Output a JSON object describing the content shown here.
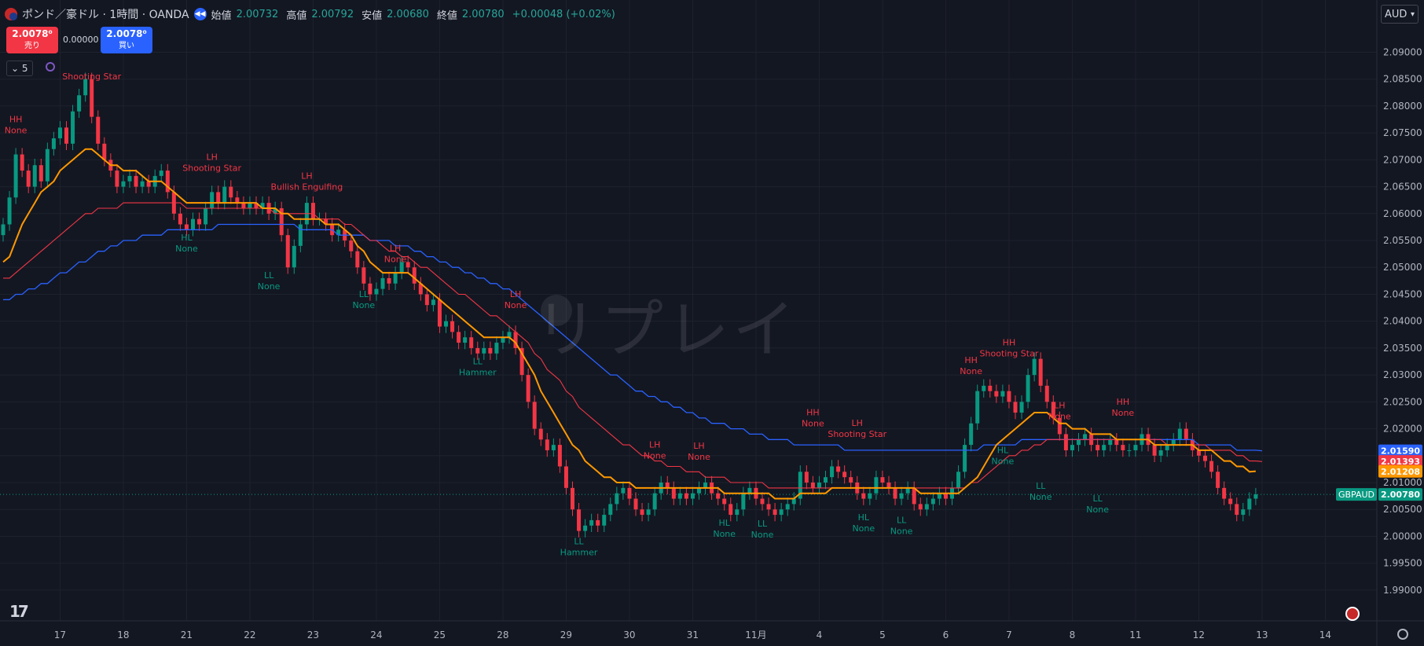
{
  "header": {
    "title": "ポンド／豪ドル · 1時間 · OANDA",
    "open_label": "始値",
    "open": "2.00732",
    "high_label": "高値",
    "high": "2.00792",
    "low_label": "安値",
    "low": "2.00680",
    "close_label": "終値",
    "close": "2.00780",
    "change": "+0.00048 (+0.02%)"
  },
  "trade": {
    "sell_price": "2.0078⁰",
    "sell_label": "売り",
    "spread": "0.00000",
    "buy_price": "2.0078⁰",
    "buy_label": "買い"
  },
  "indicator_count": "5",
  "currency": "AUD",
  "watermark": "リプレイ",
  "colors": {
    "up": "#089981",
    "down": "#f23645",
    "ema_fast": "#ff9800",
    "ema_mid": "#f23645",
    "ema_slow": "#2962ff",
    "label_high": "#f23645",
    "label_low": "#089981"
  },
  "chart_data": {
    "type": "line",
    "symbol": "GBPAUD",
    "ylim": [
      1.9875,
      2.0965
    ],
    "y_ticks": [
      "2.09000",
      "2.08500",
      "2.08000",
      "2.07500",
      "2.07000",
      "2.06500",
      "2.06000",
      "2.05500",
      "2.05000",
      "2.04500",
      "2.04000",
      "2.03500",
      "2.03000",
      "2.02500",
      "2.02000",
      "2.01500",
      "2.01000",
      "2.00500",
      "2.00000",
      "1.99500",
      "1.99000"
    ],
    "y_tick_values": [
      2.09,
      2.085,
      2.08,
      2.075,
      2.07,
      2.065,
      2.06,
      2.055,
      2.05,
      2.045,
      2.04,
      2.035,
      2.03,
      2.025,
      2.02,
      2.015,
      2.01,
      2.005,
      2.0,
      1.995,
      1.99
    ],
    "x_ticks": [
      "17",
      "18",
      "21",
      "22",
      "23",
      "24",
      "25",
      "28",
      "29",
      "30",
      "31",
      "11月",
      "4",
      "5",
      "6",
      "7",
      "8",
      "11",
      "12",
      "13",
      "14"
    ],
    "x_tick_index": [
      9,
      19,
      29,
      39,
      49,
      59,
      69,
      79,
      89,
      99,
      109,
      119,
      129,
      139,
      149,
      159,
      169,
      179,
      189,
      199,
      209
    ],
    "price_line": 2.0078,
    "series": [
      {
        "id": "close",
        "values": [
          2.058,
          2.063,
          2.071,
          2.068,
          2.065,
          2.069,
          2.066,
          2.072,
          2.074,
          2.076,
          2.073,
          2.079,
          2.082,
          2.085,
          2.078,
          2.073,
          2.07,
          2.068,
          2.065,
          2.066,
          2.067,
          2.065,
          2.066,
          2.065,
          2.067,
          2.068,
          2.064,
          2.06,
          2.058,
          2.057,
          2.059,
          2.058,
          2.061,
          2.064,
          2.062,
          2.065,
          2.063,
          2.062,
          2.061,
          2.062,
          2.061,
          2.062,
          2.06,
          2.061,
          2.056,
          2.05,
          2.054,
          2.058,
          2.062,
          2.059,
          2.059,
          2.058,
          2.056,
          2.057,
          2.055,
          2.053,
          2.05,
          2.047,
          2.045,
          2.046,
          2.048,
          2.047,
          2.049,
          2.051,
          2.05,
          2.047,
          2.045,
          2.043,
          2.044,
          2.039,
          2.04,
          2.038,
          2.036,
          2.037,
          2.035,
          2.034,
          2.035,
          2.034,
          2.036,
          2.037,
          2.038,
          2.035,
          2.03,
          2.025,
          2.02,
          2.018,
          2.016,
          2.017,
          2.013,
          2.009,
          2.005,
          2.001,
          2.002,
          2.003,
          2.002,
          2.004,
          2.006,
          2.008,
          2.009,
          2.007,
          2.005,
          2.004,
          2.005,
          2.008,
          2.01,
          2.009,
          2.007,
          2.008,
          2.007,
          2.008,
          2.009,
          2.01,
          2.008,
          2.007,
          2.006,
          2.004,
          2.005,
          2.008,
          2.009,
          2.007,
          2.006,
          2.005,
          2.004,
          2.005,
          2.006,
          2.007,
          2.012,
          2.01,
          2.009,
          2.01,
          2.011,
          2.013,
          2.012,
          2.011,
          2.01,
          2.008,
          2.007,
          2.008,
          2.011,
          2.01,
          2.009,
          2.007,
          2.008,
          2.009,
          2.006,
          2.005,
          2.006,
          2.007,
          2.008,
          2.007,
          2.009,
          2.012,
          2.017,
          2.021,
          2.027,
          2.028,
          2.027,
          2.026,
          2.027,
          2.025,
          2.023,
          2.025,
          2.03,
          2.033,
          2.028,
          2.025,
          2.022,
          2.019,
          2.016,
          2.017,
          2.018,
          2.019,
          2.017,
          2.016,
          2.017,
          2.018,
          2.017,
          2.016,
          2.016,
          2.017,
          2.019,
          2.017,
          2.015,
          2.016,
          2.017,
          2.018,
          2.02,
          2.018,
          2.016,
          2.015,
          2.014,
          2.012,
          2.009,
          2.007,
          2.006,
          2.004,
          2.005,
          2.007,
          2.0078
        ]
      },
      {
        "id": "ema_fast",
        "values": [
          2.051,
          2.052,
          2.055,
          2.058,
          2.06,
          2.062,
          2.064,
          2.065,
          2.066,
          2.068,
          2.069,
          2.07,
          2.071,
          2.072,
          2.072,
          2.071,
          2.07,
          2.069,
          2.069,
          2.068,
          2.068,
          2.068,
          2.067,
          2.066,
          2.066,
          2.066,
          2.065,
          2.064,
          2.063,
          2.062,
          2.062,
          2.062,
          2.062,
          2.062,
          2.062,
          2.062,
          2.062,
          2.062,
          2.062,
          2.062,
          2.062,
          2.061,
          2.061,
          2.061,
          2.06,
          2.06,
          2.059,
          2.059,
          2.059,
          2.059,
          2.059,
          2.058,
          2.058,
          2.058,
          2.057,
          2.056,
          2.054,
          2.053,
          2.051,
          2.05,
          2.049,
          2.049,
          2.049,
          2.049,
          2.049,
          2.048,
          2.047,
          2.046,
          2.045,
          2.044,
          2.043,
          2.042,
          2.041,
          2.04,
          2.039,
          2.038,
          2.037,
          2.037,
          2.037,
          2.037,
          2.037,
          2.036,
          2.034,
          2.032,
          2.03,
          2.027,
          2.025,
          2.023,
          2.021,
          2.019,
          2.017,
          2.016,
          2.014,
          2.013,
          2.012,
          2.011,
          2.011,
          2.01,
          2.01,
          2.01,
          2.009,
          2.009,
          2.009,
          2.009,
          2.009,
          2.009,
          2.009,
          2.009,
          2.009,
          2.009,
          2.009,
          2.009,
          2.009,
          2.009,
          2.008,
          2.008,
          2.008,
          2.008,
          2.008,
          2.008,
          2.008,
          2.008,
          2.007,
          2.007,
          2.007,
          2.007,
          2.008,
          2.008,
          2.008,
          2.008,
          2.008,
          2.009,
          2.009,
          2.009,
          2.009,
          2.009,
          2.009,
          2.009,
          2.009,
          2.009,
          2.009,
          2.009,
          2.009,
          2.009,
          2.009,
          2.008,
          2.008,
          2.008,
          2.008,
          2.008,
          2.008,
          2.008,
          2.009,
          2.01,
          2.011,
          2.013,
          2.015,
          2.017,
          2.018,
          2.019,
          2.02,
          2.021,
          2.022,
          2.023,
          2.023,
          2.023,
          2.022,
          2.021,
          2.021,
          2.02,
          2.02,
          2.02,
          2.019,
          2.019,
          2.019,
          2.019,
          2.018,
          2.018,
          2.018,
          2.018,
          2.018,
          2.018,
          2.017,
          2.017,
          2.017,
          2.017,
          2.017,
          2.017,
          2.017,
          2.016,
          2.016,
          2.016,
          2.015,
          2.014,
          2.014,
          2.013,
          2.013,
          2.012,
          2.0121
        ]
      },
      {
        "id": "ema_mid",
        "values": [
          2.048,
          2.048,
          2.049,
          2.05,
          2.051,
          2.052,
          2.053,
          2.054,
          2.055,
          2.056,
          2.057,
          2.058,
          2.059,
          2.06,
          2.06,
          2.061,
          2.061,
          2.061,
          2.061,
          2.062,
          2.062,
          2.062,
          2.062,
          2.062,
          2.062,
          2.062,
          2.062,
          2.062,
          2.062,
          2.061,
          2.061,
          2.061,
          2.061,
          2.061,
          2.061,
          2.061,
          2.061,
          2.061,
          2.061,
          2.061,
          2.061,
          2.061,
          2.061,
          2.06,
          2.06,
          2.06,
          2.06,
          2.06,
          2.06,
          2.06,
          2.059,
          2.059,
          2.059,
          2.059,
          2.058,
          2.058,
          2.057,
          2.056,
          2.055,
          2.055,
          2.054,
          2.053,
          2.053,
          2.052,
          2.052,
          2.051,
          2.05,
          2.05,
          2.049,
          2.048,
          2.047,
          2.046,
          2.045,
          2.045,
          2.044,
          2.043,
          2.042,
          2.041,
          2.041,
          2.04,
          2.039,
          2.038,
          2.037,
          2.036,
          2.034,
          2.033,
          2.031,
          2.03,
          2.029,
          2.027,
          2.026,
          2.024,
          2.023,
          2.022,
          2.021,
          2.02,
          2.019,
          2.018,
          2.017,
          2.017,
          2.016,
          2.015,
          2.015,
          2.014,
          2.014,
          2.013,
          2.013,
          2.013,
          2.012,
          2.012,
          2.012,
          2.011,
          2.011,
          2.011,
          2.011,
          2.01,
          2.01,
          2.01,
          2.01,
          2.01,
          2.01,
          2.009,
          2.009,
          2.009,
          2.009,
          2.009,
          2.009,
          2.009,
          2.009,
          2.009,
          2.009,
          2.009,
          2.009,
          2.009,
          2.009,
          2.009,
          2.009,
          2.009,
          2.009,
          2.009,
          2.009,
          2.009,
          2.009,
          2.009,
          2.009,
          2.009,
          2.009,
          2.009,
          2.009,
          2.009,
          2.009,
          2.009,
          2.009,
          2.01,
          2.01,
          2.011,
          2.012,
          2.013,
          2.014,
          2.015,
          2.015,
          2.016,
          2.016,
          2.017,
          2.017,
          2.018,
          2.018,
          2.018,
          2.018,
          2.018,
          2.018,
          2.018,
          2.018,
          2.018,
          2.018,
          2.018,
          2.018,
          2.018,
          2.018,
          2.018,
          2.018,
          2.018,
          2.018,
          2.018,
          2.017,
          2.017,
          2.017,
          2.017,
          2.017,
          2.017,
          2.017,
          2.016,
          2.016,
          2.016,
          2.016,
          2.015,
          2.015,
          2.014,
          2.014,
          2.0139
        ]
      },
      {
        "id": "ema_slow",
        "values": [
          2.044,
          2.044,
          2.045,
          2.045,
          2.046,
          2.046,
          2.047,
          2.047,
          2.048,
          2.049,
          2.049,
          2.05,
          2.051,
          2.051,
          2.052,
          2.053,
          2.053,
          2.054,
          2.054,
          2.055,
          2.055,
          2.055,
          2.056,
          2.056,
          2.056,
          2.056,
          2.057,
          2.057,
          2.057,
          2.057,
          2.057,
          2.057,
          2.057,
          2.057,
          2.058,
          2.058,
          2.058,
          2.058,
          2.058,
          2.058,
          2.058,
          2.058,
          2.058,
          2.058,
          2.058,
          2.058,
          2.058,
          2.057,
          2.057,
          2.057,
          2.057,
          2.057,
          2.057,
          2.056,
          2.056,
          2.056,
          2.056,
          2.056,
          2.055,
          2.055,
          2.055,
          2.055,
          2.054,
          2.054,
          2.054,
          2.053,
          2.053,
          2.052,
          2.052,
          2.051,
          2.051,
          2.05,
          2.05,
          2.049,
          2.049,
          2.048,
          2.048,
          2.047,
          2.047,
          2.046,
          2.046,
          2.045,
          2.044,
          2.043,
          2.042,
          2.041,
          2.04,
          2.039,
          2.038,
          2.037,
          2.036,
          2.035,
          2.034,
          2.033,
          2.032,
          2.031,
          2.03,
          2.03,
          2.029,
          2.028,
          2.027,
          2.027,
          2.026,
          2.026,
          2.025,
          2.025,
          2.024,
          2.024,
          2.023,
          2.023,
          2.022,
          2.022,
          2.021,
          2.021,
          2.021,
          2.02,
          2.02,
          2.02,
          2.019,
          2.019,
          2.019,
          2.018,
          2.018,
          2.018,
          2.018,
          2.017,
          2.017,
          2.017,
          2.017,
          2.017,
          2.017,
          2.017,
          2.017,
          2.016,
          2.016,
          2.016,
          2.016,
          2.016,
          2.016,
          2.016,
          2.016,
          2.016,
          2.016,
          2.016,
          2.016,
          2.016,
          2.016,
          2.016,
          2.016,
          2.016,
          2.016,
          2.016,
          2.016,
          2.016,
          2.016,
          2.017,
          2.017,
          2.017,
          2.017,
          2.017,
          2.017,
          2.018,
          2.018,
          2.018,
          2.018,
          2.018,
          2.018,
          2.018,
          2.018,
          2.018,
          2.018,
          2.018,
          2.018,
          2.018,
          2.018,
          2.018,
          2.018,
          2.018,
          2.018,
          2.018,
          2.018,
          2.018,
          2.018,
          2.018,
          2.018,
          2.018,
          2.018,
          2.018,
          2.018,
          2.017,
          2.017,
          2.017,
          2.017,
          2.017,
          2.017,
          2.016,
          2.016,
          2.016,
          2.016,
          2.0159
        ]
      }
    ],
    "price_tags": [
      {
        "text": "2.01590",
        "value": 2.0159,
        "color": "#2962ff"
      },
      {
        "text": "2.01393",
        "value": 2.01393,
        "color": "#f23645"
      },
      {
        "text": "2.01208",
        "value": 2.01208,
        "color": "#ff9800"
      },
      {
        "text": "2.00780",
        "value": 2.0078,
        "color": "#089981",
        "symbol": "GBPAUD"
      }
    ],
    "annotations": [
      {
        "i": 2,
        "y": 2.077,
        "l1": "HH",
        "l2": "None",
        "kind": "high"
      },
      {
        "i": 14,
        "y": 2.087,
        "l1": "",
        "l2": "Shooting Star",
        "kind": "high"
      },
      {
        "i": 33,
        "y": 2.07,
        "l1": "LH",
        "l2": "Shooting Star",
        "kind": "high"
      },
      {
        "i": 48,
        "y": 2.0665,
        "l1": "LH",
        "l2": "Bullish Engulfing",
        "kind": "high"
      },
      {
        "i": 29,
        "y": 2.055,
        "l1": "HL",
        "l2": "None",
        "kind": "low"
      },
      {
        "i": 42,
        "y": 2.048,
        "l1": "LL",
        "l2": "None",
        "kind": "low"
      },
      {
        "i": 62,
        "y": 2.053,
        "l1": "LH",
        "l2": "None",
        "kind": "high"
      },
      {
        "i": 57,
        "y": 2.0445,
        "l1": "LL",
        "l2": "None",
        "kind": "low"
      },
      {
        "i": 81,
        "y": 2.0445,
        "l1": "LH",
        "l2": "None",
        "kind": "high"
      },
      {
        "i": 75,
        "y": 2.032,
        "l1": "LL",
        "l2": "Hammer",
        "kind": "low"
      },
      {
        "i": 103,
        "y": 2.0165,
        "l1": "LH",
        "l2": "None",
        "kind": "high"
      },
      {
        "i": 110,
        "y": 2.0163,
        "l1": "LH",
        "l2": "None",
        "kind": "high"
      },
      {
        "i": 91,
        "y": 1.9985,
        "l1": "LL",
        "l2": "Hammer",
        "kind": "low"
      },
      {
        "i": 114,
        "y": 2.002,
        "l1": "HL",
        "l2": "None",
        "kind": "low"
      },
      {
        "i": 120,
        "y": 2.0018,
        "l1": "LL",
        "l2": "None",
        "kind": "low"
      },
      {
        "i": 128,
        "y": 2.0225,
        "l1": "HH",
        "l2": "None",
        "kind": "high"
      },
      {
        "i": 135,
        "y": 2.0205,
        "l1": "LH",
        "l2": "Shooting Star",
        "kind": "high"
      },
      {
        "i": 136,
        "y": 2.003,
        "l1": "HL",
        "l2": "None",
        "kind": "low"
      },
      {
        "i": 142,
        "y": 2.0025,
        "l1": "LL",
        "l2": "None",
        "kind": "low"
      },
      {
        "i": 153,
        "y": 2.0322,
        "l1": "HH",
        "l2": "None",
        "kind": "high"
      },
      {
        "i": 159,
        "y": 2.0355,
        "l1": "HH",
        "l2": "Shooting Star",
        "kind": "high"
      },
      {
        "i": 158,
        "y": 2.0155,
        "l1": "HL",
        "l2": "None",
        "kind": "low"
      },
      {
        "i": 167,
        "y": 2.0238,
        "l1": "LH",
        "l2": "None",
        "kind": "high"
      },
      {
        "i": 164,
        "y": 2.0088,
        "l1": "LL",
        "l2": "None",
        "kind": "low"
      },
      {
        "i": 177,
        "y": 2.0245,
        "l1": "HH",
        "l2": "None",
        "kind": "high"
      },
      {
        "i": 173,
        "y": 2.0065,
        "l1": "LL",
        "l2": "None",
        "kind": "low"
      }
    ]
  }
}
